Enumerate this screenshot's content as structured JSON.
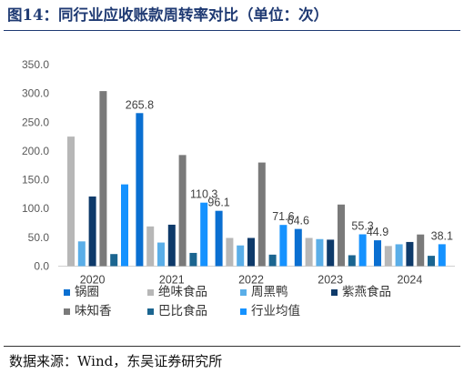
{
  "title": "图14：同行业应收账款周转率对比（单位：次）",
  "source": "数据来源：Wind，东吴证券研究所",
  "chart_data": {
    "type": "bar",
    "categories": [
      "2020",
      "2021",
      "2022",
      "2023",
      "2024"
    ],
    "ylim": [
      0,
      350
    ],
    "yticks": [
      "0.0",
      "50.0",
      "100.0",
      "150.0",
      "200.0",
      "250.0",
      "300.0",
      "350.0"
    ],
    "grid": false,
    "legend_position": "bottom",
    "series": [
      {
        "name": "锅圈",
        "color": "#0a6fd1",
        "values": [
          null,
          265.8,
          96.1,
          64.6,
          44.9
        ]
      },
      {
        "name": "绝味食品",
        "color": "#b7b7b7",
        "values": [
          225,
          69,
          49,
          49,
          35
        ]
      },
      {
        "name": "周黑鸭",
        "color": "#5aaee8",
        "values": [
          43,
          41,
          36,
          47,
          38
        ]
      },
      {
        "name": "紫燕食品",
        "color": "#0e3a6a",
        "values": [
          121,
          72,
          49,
          46,
          42
        ]
      },
      {
        "name": "味知香",
        "color": "#7a7a7a",
        "values": [
          304,
          193,
          180,
          107,
          55
        ]
      },
      {
        "name": "巴比食品",
        "color": "#1b6590",
        "values": [
          21,
          23,
          20,
          19,
          18
        ]
      },
      {
        "name": "行业均值",
        "color": "#1592ff",
        "values": [
          142,
          110.3,
          71.6,
          55.3,
          38.1
        ]
      }
    ],
    "data_labels": [
      {
        "category": "2021",
        "series": "锅圈",
        "text": "265.8"
      },
      {
        "category": "2021",
        "series": "行业均值",
        "text": "110.3"
      },
      {
        "category": "2022",
        "series": "锅圈",
        "text": "96.1"
      },
      {
        "category": "2022",
        "series": "行业均值",
        "text": "71.6"
      },
      {
        "category": "2023",
        "series": "锅圈",
        "text": "64.6"
      },
      {
        "category": "2023",
        "series": "行业均值",
        "text": "55.3"
      },
      {
        "category": "2024",
        "series": "锅圈",
        "text": "44.9"
      },
      {
        "category": "2024",
        "series": "行业均值",
        "text": "38.1"
      }
    ]
  }
}
